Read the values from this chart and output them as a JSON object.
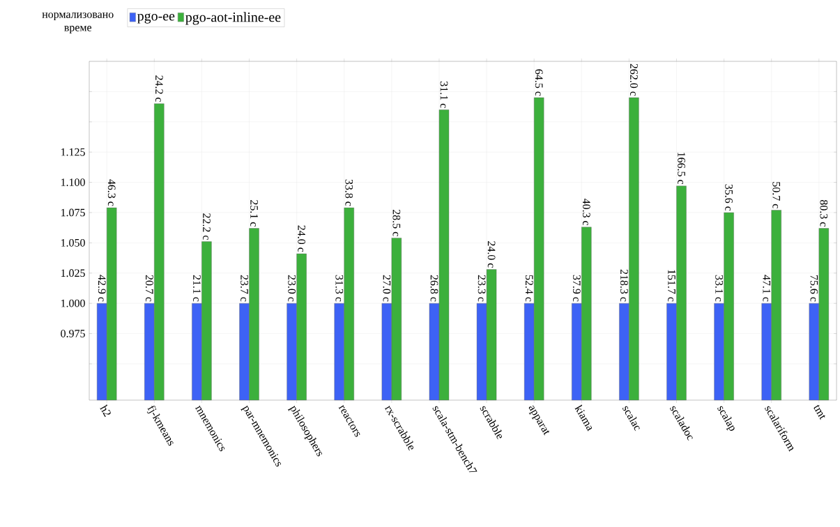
{
  "chart_data": {
    "type": "bar",
    "ylabel": "нормализовано време",
    "categories": [
      "h2",
      "fj-kmeans",
      "mnemonics",
      "par-mnemonics",
      "philosophers",
      "reactors",
      "rx-scrabble",
      "scala-stm-bench7",
      "scrabble",
      "apparat",
      "kiama",
      "scalac",
      "scaladoc",
      "scalap",
      "scalariform",
      "tmt"
    ],
    "series": [
      {
        "name": "pgo-ee",
        "color": "#3d62f5",
        "values": [
          1.0,
          1.0,
          1.0,
          1.0,
          1.0,
          1.0,
          1.0,
          1.0,
          1.0,
          1.0,
          1.0,
          1.0,
          1.0,
          1.0,
          1.0,
          1.0
        ]
      },
      {
        "name": "pgo-aot-inline-ee",
        "color": "#3cb03c",
        "values": [
          1.079,
          1.165,
          1.051,
          1.062,
          1.041,
          1.079,
          1.054,
          1.16,
          1.028,
          1.17,
          1.063,
          1.17,
          1.097,
          1.075,
          1.077,
          1.062
        ]
      }
    ],
    "annotations": [
      "42.9 с",
      "20.7 с",
      "21.1 с",
      "23.7 с",
      "23.0 с",
      "31.3 с",
      "27.0 с",
      "26.8 с",
      "23.3 с",
      "52.4 с",
      "37.9 с",
      "218.3 с",
      "151.7 с",
      "33.1 с",
      "47.1 с",
      "75.6 с",
      "46.3 с",
      "24.2 с",
      "22.2 с",
      "25.1 с",
      "24.0 с",
      "33.8 с",
      "28.5 с",
      "31.1 с",
      "24.0 с",
      "64.5 с",
      "40.3 с",
      "262.0 с",
      "166.5 с",
      "35.6 с",
      "50.7 с",
      "80.3 с"
    ],
    "ylim": [
      0.92,
      1.2
    ],
    "yticks": [
      {
        "value": 0.95,
        "label": null
      },
      {
        "value": 0.975,
        "label": "0.975"
      },
      {
        "value": 1.0,
        "label": "1.000"
      },
      {
        "value": 1.025,
        "label": "1.025"
      },
      {
        "value": 1.05,
        "label": "1.050"
      },
      {
        "value": 1.075,
        "label": "1.075"
      },
      {
        "value": 1.1,
        "label": "1.100"
      },
      {
        "value": 1.125,
        "label": "1.125"
      },
      {
        "value": 1.15,
        "label": null
      },
      {
        "value": 1.175,
        "label": null
      }
    ],
    "grid": true,
    "legend": "top left"
  }
}
